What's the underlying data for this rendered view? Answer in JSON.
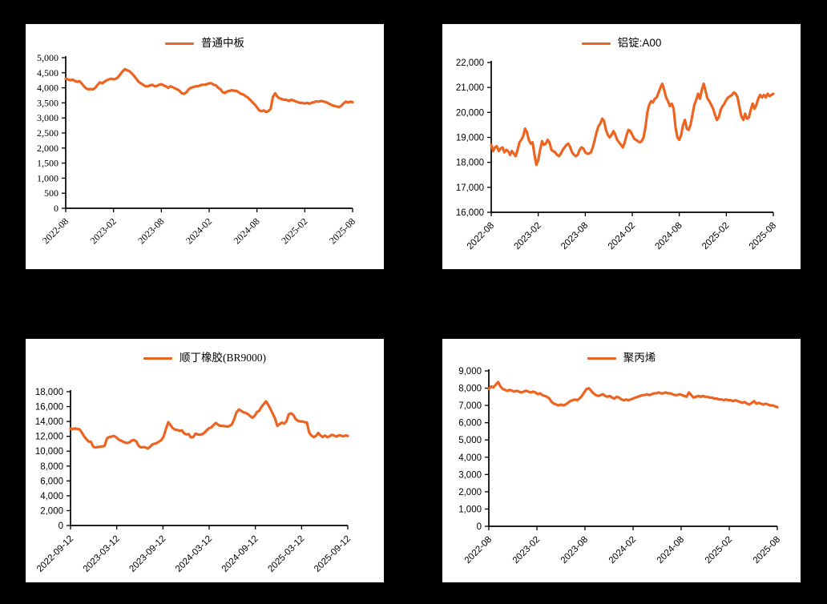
{
  "page": {
    "background_color": "#000000",
    "panel_background_color": "#ffffff",
    "accent_color": "#ED6320"
  },
  "chart_data": [
    {
      "type": "line",
      "title": "普通中板",
      "legend_position": "top-center",
      "grid": false,
      "line_color": "#ED6320",
      "ylim": [
        0,
        5000
      ],
      "ystep": 500,
      "x_tick_labels": [
        "2022-08",
        "2023-02",
        "2023-08",
        "2024-02",
        "2024-08",
        "2025-02",
        "2025-08"
      ],
      "series": [
        {
          "name": "普通中板",
          "values": [
            4300,
            4280,
            4250,
            4270,
            4230,
            4200,
            4220,
            4150,
            4050,
            3980,
            3950,
            3960,
            3950,
            4000,
            4100,
            4180,
            4150,
            4200,
            4250,
            4280,
            4300,
            4280,
            4300,
            4350,
            4450,
            4550,
            4620,
            4580,
            4550,
            4480,
            4400,
            4300,
            4200,
            4150,
            4100,
            4050,
            4050,
            4080,
            4100,
            4050,
            4060,
            4100,
            4120,
            4080,
            4050,
            4000,
            4050,
            4020,
            3980,
            3950,
            3900,
            3820,
            3800,
            3850,
            3950,
            4000,
            4020,
            4050,
            4050,
            4080,
            4100,
            4100,
            4120,
            4150,
            4150,
            4100,
            4080,
            4000,
            3950,
            3850,
            3830,
            3880,
            3900,
            3920,
            3900,
            3900,
            3850,
            3800,
            3780,
            3720,
            3680,
            3600,
            3520,
            3450,
            3350,
            3250,
            3220,
            3250,
            3200,
            3230,
            3300,
            3700,
            3820,
            3700,
            3650,
            3620,
            3600,
            3600,
            3560,
            3600,
            3580,
            3550,
            3520,
            3500,
            3500,
            3480,
            3500,
            3470,
            3500,
            3520,
            3550,
            3540,
            3560,
            3550,
            3530,
            3500,
            3460,
            3420,
            3400,
            3380,
            3360,
            3400,
            3480,
            3540,
            3510,
            3540,
            3520
          ]
        }
      ]
    },
    {
      "type": "line",
      "title": "铝锭:A00",
      "legend_position": "top-center",
      "grid": false,
      "line_color": "#ED6320",
      "ylim": [
        16000,
        22000
      ],
      "ystep": 1000,
      "x_tick_labels": [
        "2022-08",
        "2023-02",
        "2023-08",
        "2024-02",
        "2024-08",
        "2025-02",
        "2025-08"
      ],
      "series": [
        {
          "name": "铝锭:A00",
          "values": [
            18700,
            18450,
            18600,
            18650,
            18450,
            18550,
            18600,
            18400,
            18500,
            18450,
            18300,
            18450,
            18350,
            18250,
            18500,
            18800,
            18900,
            19050,
            19350,
            19200,
            18900,
            18750,
            18800,
            18300,
            17900,
            18100,
            18500,
            18850,
            18700,
            18750,
            18900,
            18800,
            18500,
            18450,
            18400,
            18300,
            18250,
            18350,
            18500,
            18600,
            18700,
            18750,
            18600,
            18400,
            18300,
            18250,
            18300,
            18500,
            18600,
            18550,
            18400,
            18350,
            18350,
            18400,
            18600,
            18900,
            19200,
            19450,
            19550,
            19750,
            19650,
            19300,
            19100,
            19000,
            19100,
            19250,
            19100,
            18900,
            18800,
            18700,
            18600,
            18800,
            19100,
            19300,
            19250,
            19100,
            18950,
            18900,
            18850,
            18800,
            18850,
            19000,
            19400,
            20000,
            20300,
            20450,
            20400,
            20550,
            20600,
            20800,
            21000,
            21150,
            20900,
            20600,
            20450,
            20250,
            20350,
            20150,
            19400,
            19000,
            18900,
            19100,
            19500,
            19700,
            19350,
            19300,
            19500,
            19900,
            20300,
            20500,
            20750,
            20550,
            20900,
            21150,
            20850,
            20550,
            20450,
            20300,
            20150,
            19900,
            19700,
            19800,
            20100,
            20250,
            20350,
            20500,
            20600,
            20650,
            20700,
            20800,
            20750,
            20600,
            20200,
            19850,
            19700,
            19950,
            19750,
            19800,
            20100,
            20350,
            20150,
            20300,
            20550,
            20700,
            20600,
            20700,
            20600,
            20750,
            20650,
            20700,
            20750
          ]
        }
      ]
    },
    {
      "type": "line",
      "title": "顺丁橡胶(BR9000)",
      "legend_position": "top-center",
      "grid": false,
      "line_color": "#ED6320",
      "ylim": [
        0,
        18000
      ],
      "ystep": 2000,
      "x_tick_labels": [
        "2022-09-12",
        "2023-03-12",
        "2023-09-12",
        "2024-03-12",
        "2024-09-12",
        "2025-03-12",
        "2025-09-12"
      ],
      "series": [
        {
          "name": "顺丁橡胶(BR9000)",
          "values": [
            13000,
            13000,
            13050,
            13000,
            12950,
            12500,
            12000,
            11600,
            11300,
            11250,
            10600,
            10500,
            10550,
            10600,
            10650,
            10700,
            11700,
            11900,
            11950,
            12050,
            11900,
            11600,
            11450,
            11300,
            11150,
            11100,
            11200,
            11450,
            11500,
            11300,
            10700,
            10500,
            10550,
            10500,
            10350,
            10600,
            10900,
            11000,
            11100,
            11300,
            11500,
            12000,
            13000,
            13900,
            13500,
            13100,
            12900,
            12850,
            12750,
            12800,
            12400,
            12250,
            12300,
            11850,
            11900,
            12350,
            12250,
            12200,
            12300,
            12500,
            12850,
            13100,
            13200,
            13550,
            13800,
            13550,
            13400,
            13400,
            13350,
            13300,
            13400,
            13600,
            14300,
            15200,
            15600,
            15450,
            15250,
            15150,
            15000,
            14750,
            14500,
            14750,
            15250,
            15450,
            15950,
            16350,
            16700,
            16250,
            15650,
            15050,
            14400,
            13400,
            13650,
            13850,
            13700,
            14000,
            14950,
            15100,
            14900,
            14350,
            14100,
            14000,
            14000,
            13900,
            13850,
            12500,
            12100,
            11900,
            12050,
            12450,
            12100,
            11900,
            12100,
            11900,
            12000,
            12200,
            12100,
            11950,
            12150,
            12100,
            12000,
            12100,
            12050
          ]
        }
      ]
    },
    {
      "type": "line",
      "title": "聚丙烯",
      "legend_position": "top-center",
      "grid": false,
      "line_color": "#ED6320",
      "ylim": [
        0,
        9000
      ],
      "ystep": 1000,
      "x_tick_labels": [
        "2022-08",
        "2023-02",
        "2023-08",
        "2024-02",
        "2024-08",
        "2025-02",
        "2025-08"
      ],
      "series": [
        {
          "name": "聚丙烯",
          "values": [
            7950,
            8100,
            8050,
            8200,
            8350,
            8100,
            7950,
            7900,
            7850,
            7900,
            7850,
            7800,
            7850,
            7800,
            7750,
            7800,
            7850,
            7800,
            7750,
            7800,
            7750,
            7650,
            7700,
            7600,
            7550,
            7500,
            7400,
            7200,
            7100,
            7050,
            7000,
            7050,
            7000,
            7050,
            7150,
            7250,
            7300,
            7350,
            7300,
            7400,
            7550,
            7750,
            7950,
            8000,
            7850,
            7700,
            7600,
            7550,
            7600,
            7650,
            7550,
            7500,
            7550,
            7450,
            7400,
            7500,
            7450,
            7350,
            7300,
            7350,
            7300,
            7350,
            7400,
            7450,
            7500,
            7550,
            7600,
            7600,
            7650,
            7600,
            7650,
            7700,
            7700,
            7750,
            7700,
            7700,
            7750,
            7700,
            7700,
            7650,
            7600,
            7600,
            7650,
            7600,
            7550,
            7500,
            7750,
            7600,
            7450,
            7500,
            7550,
            7500,
            7550,
            7500,
            7500,
            7450,
            7450,
            7400,
            7400,
            7350,
            7350,
            7300,
            7350,
            7300,
            7300,
            7250,
            7300,
            7250,
            7200,
            7150,
            7200,
            7100,
            7050,
            7150,
            7250,
            7100,
            7150,
            7100,
            7050,
            7100,
            7050,
            7000,
            7000,
            6950,
            6900
          ]
        }
      ]
    }
  ]
}
